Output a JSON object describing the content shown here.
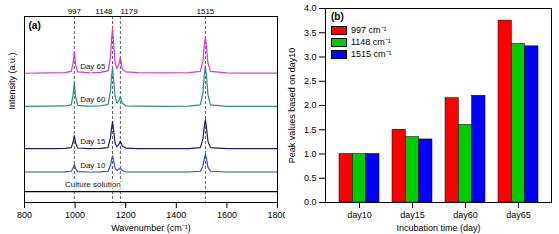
{
  "chart_data": [
    {
      "type": "line",
      "title": "(a)",
      "x_label": "Wavenumber (cm⁻¹)",
      "y_label": "Intensity (a.u.)",
      "x": [
        800,
        900,
        960,
        985,
        992,
        997,
        1002,
        1010,
        1050,
        1100,
        1130,
        1140,
        1144,
        1148,
        1152,
        1158,
        1165,
        1172,
        1179,
        1186,
        1200,
        1250,
        1350,
        1450,
        1495,
        1505,
        1510,
        1515,
        1520,
        1525,
        1535,
        1600,
        1700,
        1800
      ],
      "series": [
        {
          "name": "Day 65",
          "color": "#d63bd6",
          "values": [
            6.95,
            6.97,
            6.98,
            7.05,
            7.5,
            8.07,
            7.4,
            7.02,
            6.98,
            7.0,
            7.08,
            7.8,
            8.8,
            9.37,
            8.6,
            7.5,
            7.2,
            7.4,
            7.8,
            7.2,
            7.02,
            6.98,
            6.97,
            6.98,
            7.05,
            7.6,
            8.4,
            8.9,
            8.3,
            7.5,
            7.05,
            6.97,
            6.96,
            6.96
          ]
        },
        {
          "name": "Day 60",
          "color": "#2a8f86",
          "values": [
            5.17,
            5.18,
            5.19,
            5.25,
            5.8,
            6.4,
            5.7,
            5.22,
            5.18,
            5.2,
            5.26,
            6.0,
            6.8,
            7.25,
            6.6,
            5.7,
            5.35,
            5.45,
            5.7,
            5.35,
            5.2,
            5.18,
            5.17,
            5.18,
            5.25,
            5.9,
            6.8,
            7.35,
            6.7,
            5.8,
            5.25,
            5.17,
            5.17,
            5.17
          ]
        },
        {
          "name": "Day 15",
          "color": "#1c1c6e",
          "values": [
            2.9,
            2.9,
            2.91,
            2.95,
            3.25,
            3.6,
            3.2,
            2.93,
            2.9,
            2.91,
            2.95,
            3.5,
            4.0,
            4.35,
            3.9,
            3.2,
            3.0,
            3.1,
            3.3,
            3.05,
            2.92,
            2.9,
            2.9,
            2.9,
            2.95,
            3.4,
            4.0,
            4.45,
            3.95,
            3.3,
            2.95,
            2.9,
            2.9,
            2.9
          ]
        },
        {
          "name": "Day 10",
          "color": "#2f4fc4",
          "values": [
            1.64,
            1.64,
            1.65,
            1.68,
            1.85,
            2.05,
            1.82,
            1.66,
            1.64,
            1.65,
            1.68,
            2.0,
            2.3,
            2.5,
            2.25,
            1.85,
            1.72,
            1.78,
            1.85,
            1.72,
            1.65,
            1.64,
            1.64,
            1.64,
            1.68,
            1.95,
            2.3,
            2.6,
            2.3,
            1.9,
            1.68,
            1.64,
            1.64,
            1.64
          ]
        },
        {
          "name": "Culture solution",
          "color": "#000000",
          "values": [
            0.58,
            0.58,
            0.58,
            0.58,
            0.58,
            0.58,
            0.58,
            0.58,
            0.58,
            0.58,
            0.58,
            0.58,
            0.58,
            0.58,
            0.58,
            0.58,
            0.58,
            0.58,
            0.58,
            0.58,
            0.58,
            0.58,
            0.58,
            0.58,
            0.58,
            0.58,
            0.58,
            0.58,
            0.58,
            0.58,
            0.58,
            0.58,
            0.58,
            0.58
          ]
        }
      ],
      "annotations": [
        {
          "x": 997,
          "text": "997"
        },
        {
          "x": 1148,
          "text": "1148"
        },
        {
          "x": 1179,
          "text": "1179"
        },
        {
          "x": 1515,
          "text": "1515"
        }
      ],
      "xlim": [
        800,
        1800
      ],
      "xticks": [
        800,
        1000,
        1200,
        1400,
        1600,
        1800
      ],
      "ylim": [
        0,
        10
      ],
      "tick_labels": "x",
      "grid": false
    },
    {
      "type": "bar",
      "title": "(b)",
      "x_label": "Incubation time (day)",
      "y_label": "Peak values based on day10",
      "categories": [
        "day10",
        "day15",
        "day60",
        "day65"
      ],
      "series": [
        {
          "name": "997 cm⁻¹",
          "color": "#ff0000",
          "values": [
            1.0,
            1.5,
            2.15,
            3.75
          ]
        },
        {
          "name": "1148 cm⁻¹",
          "color": "#00cc00",
          "values": [
            1.0,
            1.35,
            1.6,
            3.27
          ]
        },
        {
          "name": "1515 cm⁻¹",
          "color": "#0000ff",
          "values": [
            1.0,
            1.3,
            2.2,
            3.22
          ]
        }
      ],
      "ylim": [
        0,
        4
      ],
      "yticks": [
        {
          "value": 0,
          "label": "0.0"
        },
        0.5,
        {
          "value": 1,
          "label": "1.0"
        },
        1.5,
        {
          "value": 2,
          "label": "2.0"
        },
        2.5,
        {
          "value": 3,
          "label": "3.0"
        },
        3.5,
        {
          "value": 4,
          "label": "4.0"
        }
      ],
      "legend": "top-left",
      "grid": false
    }
  ]
}
